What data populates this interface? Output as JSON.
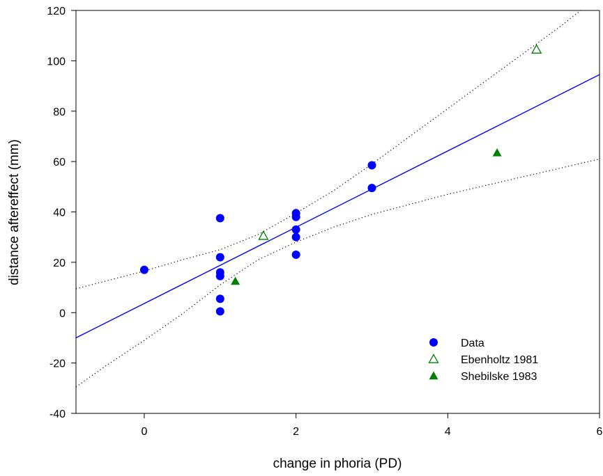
{
  "chart_data": {
    "type": "scatter",
    "xlabel": "change in phoria (PD)",
    "ylabel": "distance aftereffect (mm)",
    "xlim": [
      -0.9,
      6
    ],
    "ylim": [
      -40,
      120
    ],
    "x_ticks": [
      0,
      2,
      4,
      6
    ],
    "y_ticks": [
      -40,
      -20,
      0,
      20,
      40,
      60,
      80,
      100,
      120
    ],
    "x_tick_labels": [
      "0",
      "2",
      "4",
      "6"
    ],
    "y_tick_labels": [
      "-40",
      "-20",
      "0",
      "20",
      "40",
      "60",
      "80",
      "100",
      "120"
    ],
    "grid": false,
    "legend_position": "bottom-right",
    "series": [
      {
        "name": "Data",
        "marker": "filled-circle",
        "color": "#0000ff",
        "points": [
          {
            "x": 0,
            "y": 17
          },
          {
            "x": 1,
            "y": 37.5
          },
          {
            "x": 1,
            "y": 22
          },
          {
            "x": 1,
            "y": 16
          },
          {
            "x": 1,
            "y": 14.5
          },
          {
            "x": 1,
            "y": 5.5
          },
          {
            "x": 1,
            "y": 0.5
          },
          {
            "x": 2,
            "y": 39.5
          },
          {
            "x": 2,
            "y": 38
          },
          {
            "x": 2,
            "y": 33
          },
          {
            "x": 2,
            "y": 30
          },
          {
            "x": 2,
            "y": 23
          },
          {
            "x": 3,
            "y": 58.5
          },
          {
            "x": 3,
            "y": 49.5
          }
        ]
      },
      {
        "name": "Ebenholtz 1981",
        "marker": "open-triangle",
        "color": "#008000",
        "points": [
          {
            "x": 1.57,
            "y": 30.5
          },
          {
            "x": 5.17,
            "y": 104.5
          }
        ]
      },
      {
        "name": "Shebilske 1983",
        "marker": "filled-triangle",
        "color": "#008000",
        "points": [
          {
            "x": 1.2,
            "y": 12.5
          },
          {
            "x": 4.65,
            "y": 63.5
          }
        ]
      }
    ],
    "regression": {
      "color": "#0000ff",
      "line": [
        {
          "x": -0.9,
          "y": -10
        },
        {
          "x": 6,
          "y": 94.5
        }
      ]
    },
    "confidence_band": {
      "color": "#000000",
      "style": "dotted",
      "upper": [
        {
          "x": -0.9,
          "y": 9.5
        },
        {
          "x": 0,
          "y": 16.5
        },
        {
          "x": 0.5,
          "y": 21
        },
        {
          "x": 1,
          "y": 25
        },
        {
          "x": 1.5,
          "y": 31
        },
        {
          "x": 2,
          "y": 39.5
        },
        {
          "x": 2.5,
          "y": 48.5
        },
        {
          "x": 3,
          "y": 59
        },
        {
          "x": 3.5,
          "y": 70
        },
        {
          "x": 4,
          "y": 81
        },
        {
          "x": 4.5,
          "y": 92
        },
        {
          "x": 5,
          "y": 103
        },
        {
          "x": 5.5,
          "y": 114
        },
        {
          "x": 5.75,
          "y": 120
        }
      ],
      "lower": [
        {
          "x": -0.9,
          "y": -29.5
        },
        {
          "x": -0.5,
          "y": -21
        },
        {
          "x": 0,
          "y": -11
        },
        {
          "x": 0.5,
          "y": -0.5
        },
        {
          "x": 1,
          "y": 11
        },
        {
          "x": 1.5,
          "y": 21
        },
        {
          "x": 2,
          "y": 28
        },
        {
          "x": 2.5,
          "y": 34
        },
        {
          "x": 3,
          "y": 39
        },
        {
          "x": 3.5,
          "y": 43
        },
        {
          "x": 4,
          "y": 47
        },
        {
          "x": 4.5,
          "y": 50.5
        },
        {
          "x": 5,
          "y": 54
        },
        {
          "x": 5.5,
          "y": 57.5
        },
        {
          "x": 6,
          "y": 61
        }
      ]
    }
  }
}
